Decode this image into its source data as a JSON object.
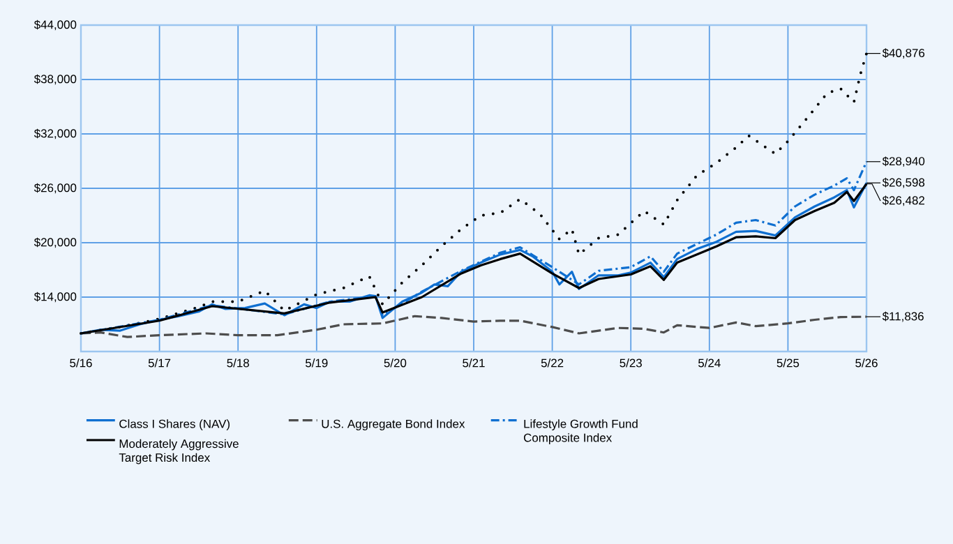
{
  "chart_data": {
    "type": "line",
    "xlim": [
      "2016-05",
      "2026-05"
    ],
    "xticks": [
      {
        "value": "2016-05",
        "label": "5/16"
      },
      {
        "value": "2017-05",
        "label": "5/17"
      },
      {
        "value": "2018-05",
        "label": "5/18"
      },
      {
        "value": "2019-05",
        "label": "5/19"
      },
      {
        "value": "2020-05",
        "label": "5/20"
      },
      {
        "value": "2021-05",
        "label": "5/21"
      },
      {
        "value": "2022-05",
        "label": "5/22"
      },
      {
        "value": "2023-05",
        "label": "5/23"
      },
      {
        "value": "2024-05",
        "label": "5/24"
      },
      {
        "value": "2025-05",
        "label": "5/25"
      },
      {
        "value": "2026-05",
        "label": "5/26"
      }
    ],
    "ylim": [
      8000,
      44000
    ],
    "yticks": [
      {
        "value": 14000,
        "label": "$14,000"
      },
      {
        "value": 20000,
        "label": "$20,000"
      },
      {
        "value": 26000,
        "label": "$26,000"
      },
      {
        "value": 32000,
        "label": "$32,000"
      },
      {
        "value": 38000,
        "label": "$38,000"
      },
      {
        "value": 44000,
        "label": "$44,000"
      }
    ],
    "grid": true,
    "legend": "bottom",
    "series": [
      {
        "name": "Class I Shares (NAV)",
        "color": "#0f6fd0",
        "line_style": "solid",
        "x": [
          "2016-05",
          "2016-08",
          "2016-11",
          "2017-02",
          "2017-05",
          "2017-08",
          "2017-11",
          "2018-01",
          "2018-03",
          "2018-06",
          "2018-09",
          "2018-12",
          "2019-03",
          "2019-05",
          "2019-07",
          "2019-10",
          "2020-01",
          "2020-02",
          "2020-03",
          "2020-06",
          "2020-09",
          "2020-11",
          "2021-01",
          "2021-03",
          "2021-06",
          "2021-09",
          "2021-12",
          "2022-02",
          "2022-05",
          "2022-06",
          "2022-08",
          "2022-09",
          "2022-12",
          "2023-03",
          "2023-05",
          "2023-08",
          "2023-10",
          "2023-12",
          "2024-03",
          "2024-06",
          "2024-09",
          "2024-12",
          "2025-03",
          "2025-06",
          "2025-09",
          "2025-12",
          "2026-02",
          "2026-03",
          "2026-05"
        ],
        "values": [
          10000,
          10400,
          10300,
          11000,
          11500,
          11900,
          12400,
          13200,
          12700,
          12800,
          13300,
          12000,
          13200,
          12800,
          13500,
          13500,
          14200,
          14100,
          11700,
          13500,
          14500,
          15400,
          15200,
          16800,
          17800,
          18700,
          19200,
          18500,
          16800,
          15400,
          16800,
          14900,
          16400,
          16400,
          16700,
          17800,
          16200,
          18200,
          19300,
          20100,
          21200,
          21300,
          20800,
          22800,
          24000,
          25000,
          25800,
          23900,
          26598
        ]
      },
      {
        "color": "#000000",
        "line_style": "dotted",
        "x": [
          "2016-05",
          "2016-11",
          "2017-05",
          "2017-11",
          "2018-01",
          "2018-05",
          "2018-09",
          "2018-12",
          "2019-05",
          "2019-09",
          "2020-01",
          "2020-03",
          "2020-06",
          "2020-09",
          "2020-12",
          "2021-03",
          "2021-06",
          "2021-09",
          "2021-12",
          "2022-03",
          "2022-06",
          "2022-08",
          "2022-09",
          "2022-12",
          "2023-03",
          "2023-07",
          "2023-10",
          "2023-12",
          "2024-03",
          "2024-06",
          "2024-09",
          "2024-11",
          "2025-03",
          "2025-05",
          "2025-08",
          "2025-11",
          "2026-01",
          "2026-03",
          "2026-04",
          "2026-05"
        ],
        "values": [
          10000,
          10700,
          11600,
          12900,
          13500,
          13500,
          14700,
          12500,
          14300,
          15000,
          16300,
          13200,
          15600,
          17500,
          19600,
          21500,
          23000,
          23300,
          24800,
          23200,
          20400,
          21500,
          18700,
          20500,
          20900,
          23500,
          22000,
          24700,
          27400,
          28800,
          30500,
          31800,
          29800,
          31200,
          33800,
          36500,
          37000,
          35500,
          38500,
          40876
        ]
      },
      {
        "name": "U.S. Aggregate Bond Index",
        "color": "#4d4d4d",
        "line_style": "dashed",
        "x": [
          "2016-05",
          "2016-08",
          "2016-12",
          "2017-05",
          "2017-12",
          "2018-05",
          "2018-11",
          "2019-05",
          "2019-09",
          "2020-03",
          "2020-08",
          "2020-12",
          "2021-05",
          "2021-09",
          "2021-12",
          "2022-05",
          "2022-09",
          "2022-12",
          "2023-03",
          "2023-07",
          "2023-10",
          "2023-12",
          "2024-05",
          "2024-09",
          "2024-12",
          "2025-05",
          "2025-09",
          "2026-01",
          "2026-05"
        ],
        "values": [
          10000,
          10100,
          9600,
          9800,
          10000,
          9800,
          9800,
          10400,
          11000,
          11100,
          11900,
          11700,
          11300,
          11400,
          11400,
          10700,
          10000,
          10300,
          10600,
          10500,
          10100,
          10900,
          10600,
          11200,
          10800,
          11100,
          11500,
          11800,
          11836
        ]
      },
      {
        "name": "Lifestyle Growth Fund Composite Index",
        "color": "#0f6fd0",
        "line_style": "dashdot",
        "x": [
          "2016-05",
          "2017-05",
          "2018-01",
          "2018-12",
          "2019-07",
          "2020-02",
          "2020-03",
          "2020-09",
          "2021-03",
          "2021-09",
          "2021-12",
          "2022-05",
          "2022-09",
          "2022-12",
          "2023-05",
          "2023-08",
          "2023-10",
          "2023-12",
          "2024-06",
          "2024-09",
          "2024-12",
          "2025-03",
          "2025-06",
          "2025-09",
          "2025-12",
          "2026-02",
          "2026-03",
          "2026-05"
        ],
        "values": [
          10000,
          11500,
          13100,
          12100,
          13500,
          14100,
          12000,
          14600,
          16900,
          18900,
          19500,
          17300,
          15400,
          16900,
          17300,
          18500,
          16800,
          18800,
          20900,
          22200,
          22500,
          21900,
          24000,
          25300,
          26300,
          27100,
          25800,
          28940
        ]
      },
      {
        "name": "Moderately Aggressive Target Risk Index",
        "color": "#000000",
        "line_style": "solid",
        "x": [
          "2016-05",
          "2017-05",
          "2018-01",
          "2018-12",
          "2019-07",
          "2020-02",
          "2020-03",
          "2020-09",
          "2021-03",
          "2021-06",
          "2021-09",
          "2021-12",
          "2022-05",
          "2022-09",
          "2022-12",
          "2023-05",
          "2023-08",
          "2023-10",
          "2023-12",
          "2024-06",
          "2024-09",
          "2024-12",
          "2025-03",
          "2025-06",
          "2025-09",
          "2025-12",
          "2026-02",
          "2026-03",
          "2026-05"
        ],
        "values": [
          10000,
          11400,
          13000,
          12200,
          13400,
          14000,
          12300,
          14000,
          16600,
          17500,
          18200,
          18800,
          16600,
          15000,
          16000,
          16500,
          17400,
          15900,
          17800,
          19600,
          20600,
          20700,
          20500,
          22500,
          23500,
          24400,
          25600,
          24600,
          26482
        ]
      }
    ],
    "annotations": [
      {
        "text": "$40,876",
        "x": "2026-05",
        "y": 40876
      },
      {
        "text": "$28,940",
        "x": "2026-05",
        "y": 28940
      },
      {
        "text": "$26,598",
        "x": "2026-05",
        "y": 26598
      },
      {
        "text": "$26,482",
        "x": "2026-05",
        "y": 26482
      },
      {
        "text": "$11,836",
        "x": "2026-05",
        "y": 11836
      }
    ]
  }
}
